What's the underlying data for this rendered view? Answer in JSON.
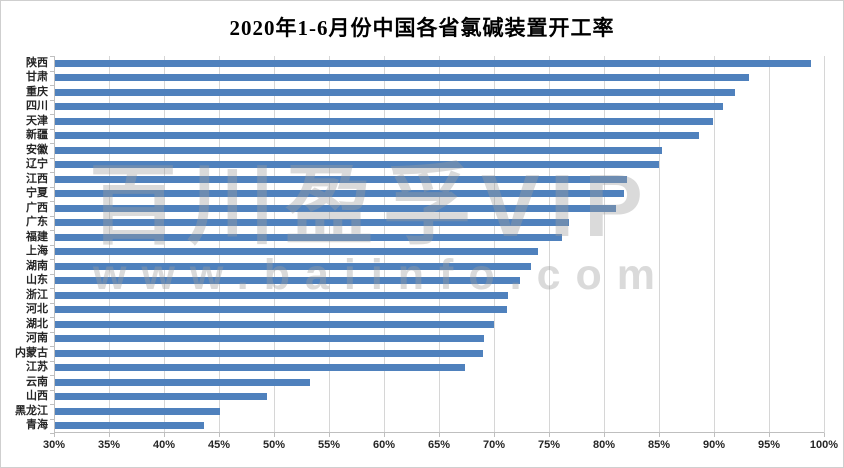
{
  "title": "2020年1-6月份中国各省氯碱装置开工率",
  "watermark": {
    "line1": "百川盈孚VIP",
    "line2": "www.baiinfo.com"
  },
  "colors": {
    "bar": "#4F81BD",
    "gridline": "#D6D6D6",
    "axis": "#BFBFBF",
    "axis_text": "#262626",
    "title_text": "#000000",
    "watermark": "rgba(158,158,158,0.38)"
  },
  "chart_data": {
    "type": "bar",
    "orientation": "horizontal",
    "title": "2020年1-6月份中国各省氯碱装置开工率",
    "xlabel": "",
    "ylabel": "",
    "xlim": [
      30,
      100
    ],
    "grid": true,
    "legend": false,
    "unit": "%",
    "x_ticks": [
      "30%",
      "35%",
      "40%",
      "45%",
      "50%",
      "55%",
      "60%",
      "65%",
      "70%",
      "75%",
      "80%",
      "85%",
      "90%",
      "95%",
      "100%"
    ],
    "categories": [
      "陕西",
      "甘肃",
      "重庆",
      "四川",
      "天津",
      "新疆",
      "安徽",
      "辽宁",
      "江西",
      "宁夏",
      "广西",
      "广东",
      "福建",
      "上海",
      "湖南",
      "山东",
      "浙江",
      "河北",
      "湖北",
      "河南",
      "内蒙古",
      "江苏",
      "云南",
      "山西",
      "黑龙江",
      "青海"
    ],
    "values": [
      98.8,
      93.2,
      91.9,
      90.8,
      89.9,
      88.6,
      85.3,
      85.0,
      82.1,
      81.8,
      81.1,
      76.8,
      76.2,
      74.0,
      73.4,
      72.4,
      71.3,
      71.2,
      70.0,
      69.1,
      69.0,
      67.4,
      53.3,
      49.4,
      45.1,
      43.6
    ]
  }
}
